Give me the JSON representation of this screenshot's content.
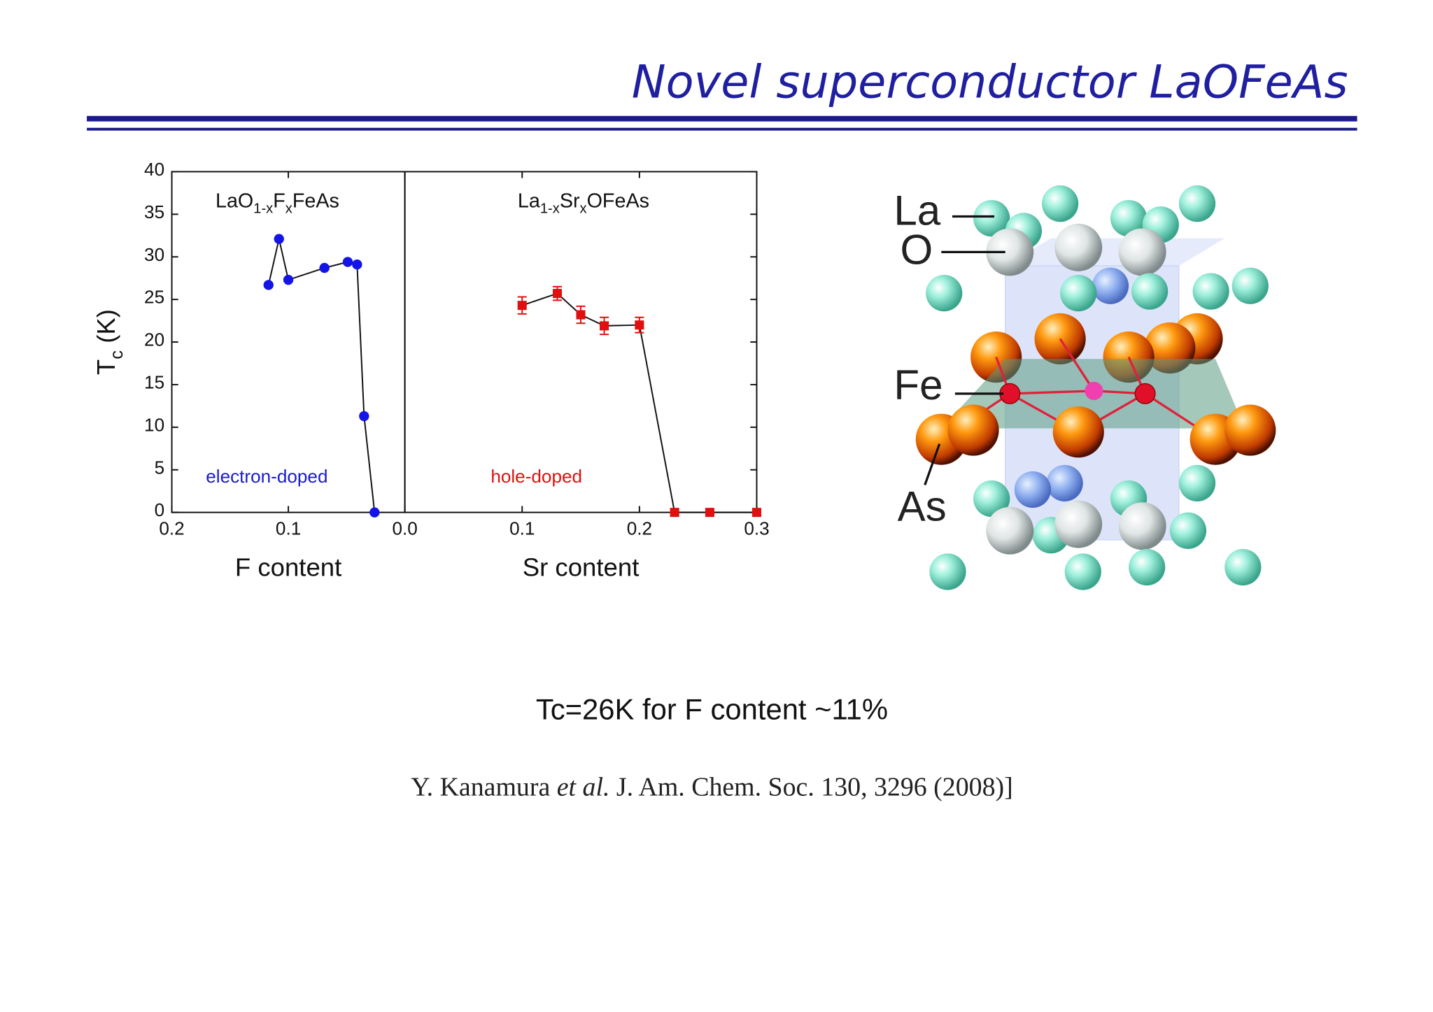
{
  "slide": {
    "title": "Novel superconductor LaOFeAs",
    "caption": "Tc=26K for F content ~11%",
    "reference": [
      "Y. Kanamura ",
      "et al.",
      " J. Am. Chem. Soc. 130, 3296 (2008)]"
    ],
    "structure_labels": [
      "La",
      "O",
      "Fe",
      "As"
    ]
  },
  "chart_data": [
    {
      "type": "line",
      "formula": [
        "LaO",
        "1-x",
        "F",
        "x",
        "FeAs"
      ],
      "x_label": "F content",
      "y_label": [
        "T",
        "c",
        " (K)"
      ],
      "annotation": "electron-doped",
      "annotation_color": "#1a1ad0",
      "xlim": [
        0.2,
        0.0
      ],
      "xticks": [
        0.2,
        0.1,
        {
          "value": 0,
          "label": "0.0"
        }
      ],
      "ylim": [
        0,
        40
      ],
      "yticks": [
        0,
        5,
        10,
        15,
        20,
        25,
        30,
        35,
        40
      ],
      "series": [
        {
          "color": "#1414e6",
          "marker": "circle",
          "x": [
            0.117,
            0.108,
            0.1,
            0.069,
            0.049,
            0.041,
            0.035,
            0.026
          ],
          "values": [
            26.7,
            32.1,
            27.3,
            28.7,
            29.4,
            29.1,
            11.3,
            0
          ]
        }
      ]
    },
    {
      "type": "line",
      "formula": [
        "La",
        "1-x",
        "Sr",
        "x",
        "OFeAs"
      ],
      "x_label": "Sr content",
      "annotation": "hole-doped",
      "annotation_color": "#e01010",
      "xlim": [
        0.0,
        0.3
      ],
      "xticks": [
        0.1,
        0.2,
        0.3
      ],
      "ylim": [
        0,
        40
      ],
      "series": [
        {
          "color": "#e01010",
          "marker": "square",
          "x": [
            0.1,
            0.13,
            0.15,
            0.17,
            0.2,
            0.23,
            0.26,
            0.3
          ],
          "values": [
            24.3,
            25.7,
            23.2,
            21.9,
            22.0,
            0,
            0,
            0
          ],
          "errors": [
            1.0,
            0.8,
            1.0,
            1.0,
            0.9,
            0,
            0,
            0
          ]
        }
      ]
    }
  ]
}
